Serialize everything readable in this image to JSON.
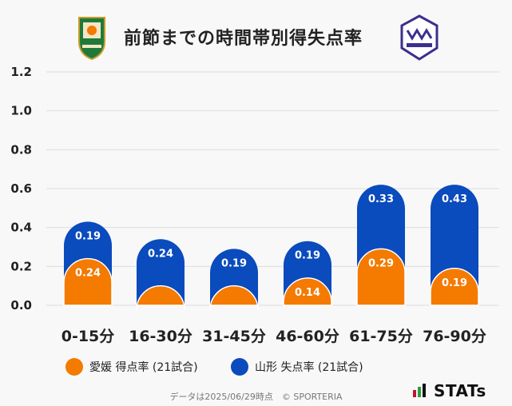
{
  "title": "前節までの時間帯別得失点率",
  "colors": {
    "home": "#f47a00",
    "away": "#0a4bbd",
    "grid": "#dddddd"
  },
  "chart_data": {
    "type": "bar",
    "stacked": true,
    "categories": [
      "0-15分",
      "16-30分",
      "31-45分",
      "46-60分",
      "61-75分",
      "76-90分"
    ],
    "series": [
      {
        "name": "愛媛 得点率 (21試合)",
        "values": [
          0.24,
          0.1,
          0.1,
          0.14,
          0.29,
          0.19
        ],
        "labels": [
          "0.24",
          "",
          "",
          "0.14",
          "0.29",
          "0.19"
        ]
      },
      {
        "name": "山形 失点率 (21試合)",
        "values": [
          0.19,
          0.24,
          0.19,
          0.19,
          0.33,
          0.43
        ],
        "labels": [
          "0.19",
          "0.24",
          "0.19",
          "0.19",
          "0.33",
          "0.43"
        ]
      }
    ],
    "ylim": [
      0,
      1.2
    ],
    "yticks": [
      "0.0",
      "0.2",
      "0.4",
      "0.6",
      "0.8",
      "1.0",
      "1.2"
    ],
    "grid": true,
    "legend": "bottom"
  },
  "legend": {
    "home": "愛媛 得点率 (21試合)",
    "away": "山形 失点率 (21試合)"
  },
  "footer": "データは2025/06/29時点　© SPORTERIA",
  "brand": "STATs"
}
